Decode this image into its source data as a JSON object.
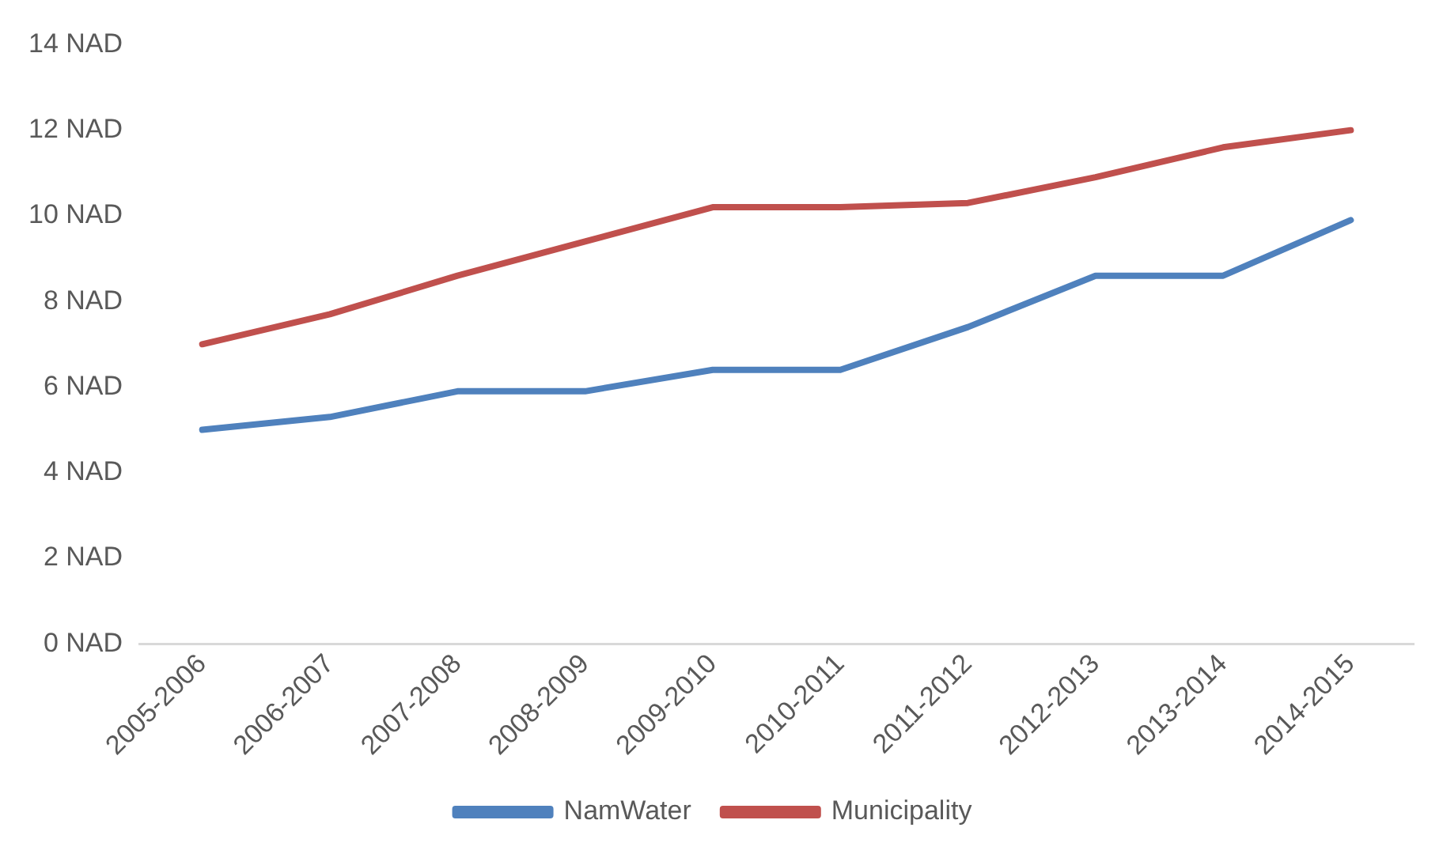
{
  "chart_data": {
    "type": "line",
    "categories": [
      "2005-2006",
      "2006-2007",
      "2007-2008",
      "2008-2009",
      "2009-2010",
      "2010-2011",
      "2011-2012",
      "2012-2013",
      "2013-2014",
      "2014-2015"
    ],
    "series": [
      {
        "name": "NamWater",
        "color": "#4f81bd",
        "values": [
          5,
          5.3,
          5.9,
          5.9,
          6.4,
          6.4,
          7.4,
          8.6,
          8.6,
          9.9
        ]
      },
      {
        "name": "Municipality",
        "color": "#c0504d",
        "values": [
          7,
          7.7,
          8.6,
          9.4,
          10.2,
          10.2,
          10.3,
          10.9,
          11.6,
          12
        ]
      }
    ],
    "ylim": [
      0,
      14
    ],
    "yticks": [
      {
        "value": 0,
        "label": "0 NAD"
      },
      {
        "value": 2,
        "label": "2 NAD"
      },
      {
        "value": 4,
        "label": "4 NAD"
      },
      {
        "value": 6,
        "label": "6 NAD"
      },
      {
        "value": 8,
        "label": "8 NAD"
      },
      {
        "value": 10,
        "label": "10 NAD"
      },
      {
        "value": 12,
        "label": "12 NAD"
      },
      {
        "value": 14,
        "label": "14 NAD"
      }
    ],
    "grid": false,
    "legend": "bottom",
    "marker": "none",
    "line_style": "solid"
  }
}
